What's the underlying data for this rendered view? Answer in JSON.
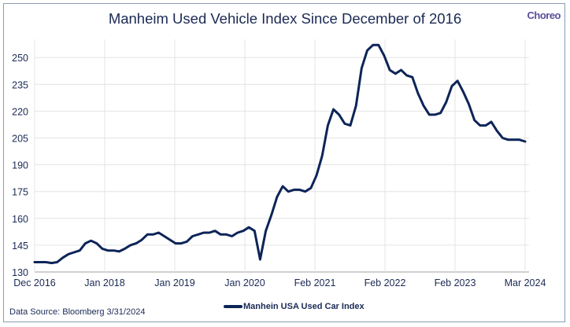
{
  "title": "Manheim Used Vehicle Index Since December of 2016",
  "logo": "Choreo",
  "source": "Data Source: Bloomberg 3/31/2024",
  "chart_data": {
    "type": "line",
    "title": "Manheim Used Vehicle Index Since December of 2016",
    "xlabel": "",
    "ylabel": "",
    "ylim": [
      130,
      260
    ],
    "yticks": [
      130,
      145,
      160,
      175,
      190,
      205,
      220,
      235,
      250
    ],
    "xtick_labels": [
      "Dec 2016",
      "Jan 2018",
      "Jan 2019",
      "Jan 2020",
      "Feb 2021",
      "Feb 2022",
      "Feb 2023",
      "Mar 2024"
    ],
    "grid": true,
    "legend_position": "bottom",
    "color": "#0d2458",
    "series": [
      {
        "name": "Manhein USA Used Car Index",
        "values": [
          135.5,
          135.5,
          135.5,
          135,
          135.5,
          138,
          140,
          141,
          142,
          146,
          147.5,
          146,
          143,
          142,
          142,
          141.5,
          143,
          145,
          146,
          148,
          151,
          151,
          152,
          150,
          148,
          146,
          146,
          147,
          150,
          151,
          152,
          152,
          153,
          151,
          151,
          150,
          152,
          153,
          155,
          153,
          137,
          153,
          162,
          172,
          178,
          175,
          176,
          176,
          175,
          177,
          184,
          195,
          212,
          221,
          218,
          213,
          212,
          223,
          244,
          254,
          257,
          257,
          251,
          243,
          241,
          243,
          240,
          239,
          230,
          223,
          218,
          218,
          219,
          225,
          234,
          237,
          231,
          224,
          215,
          212,
          212,
          214,
          209,
          205,
          204,
          204,
          204,
          203
        ]
      }
    ]
  }
}
